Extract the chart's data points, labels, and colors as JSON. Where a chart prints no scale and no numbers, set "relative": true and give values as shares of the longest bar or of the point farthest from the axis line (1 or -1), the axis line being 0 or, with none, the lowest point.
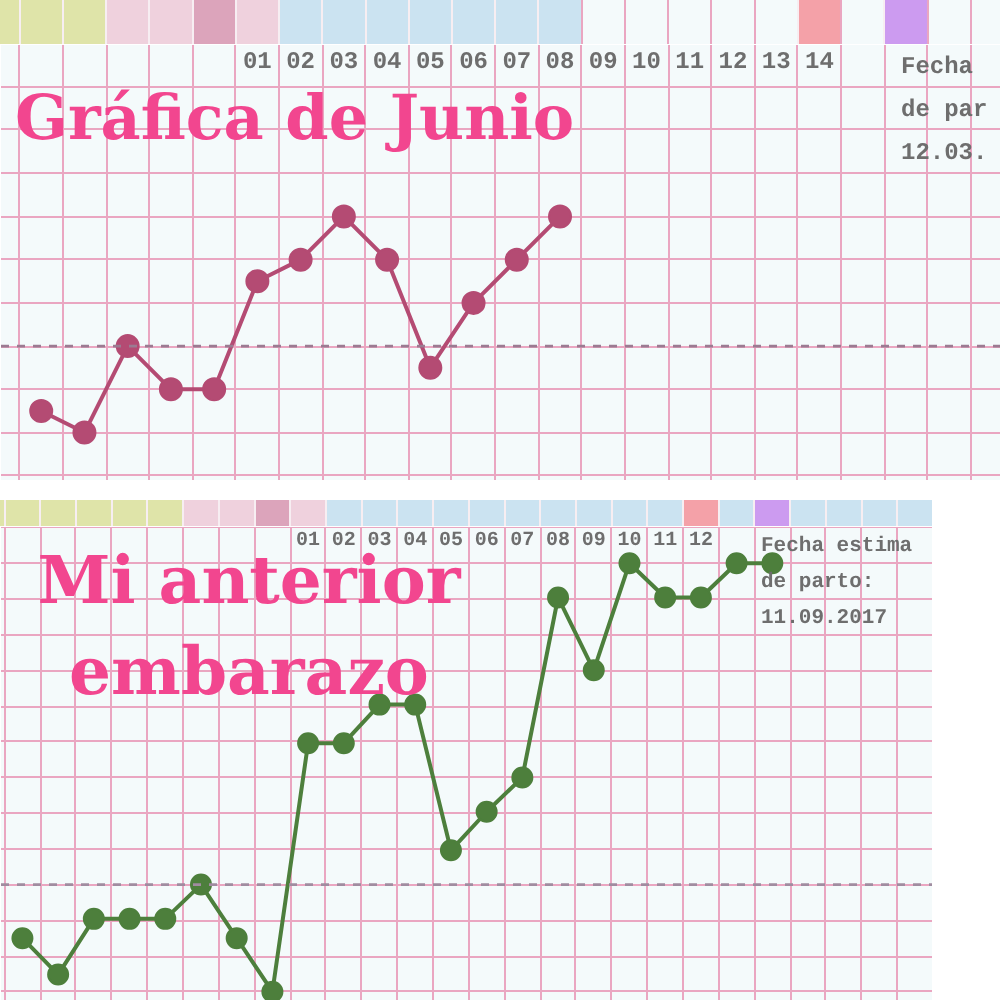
{
  "chart_data": [
    {
      "type": "line",
      "title": "Gráfica de Junio",
      "relative": true,
      "grid": true,
      "marker": "circle",
      "xlim": [
        -4.93,
        18.2
      ],
      "xticks": [
        {
          "value": -4.5,
          "label": null
        },
        {
          "value": -3.5,
          "label": null
        },
        {
          "value": -2.5,
          "label": null
        },
        {
          "value": -1.5,
          "label": null
        },
        {
          "value": -0.5,
          "label": null
        },
        {
          "value": 0.5,
          "label": null
        },
        {
          "value": 1,
          "label": "01"
        },
        {
          "value": 1.5,
          "label": null
        },
        {
          "value": 2,
          "label": "02"
        },
        {
          "value": 2.5,
          "label": null
        },
        {
          "value": 3,
          "label": "03"
        },
        {
          "value": 3.5,
          "label": null
        },
        {
          "value": 4,
          "label": "04"
        },
        {
          "value": 4.5,
          "label": null
        },
        {
          "value": 5,
          "label": "05"
        },
        {
          "value": 5.5,
          "label": null
        },
        {
          "value": 6,
          "label": "06"
        },
        {
          "value": 6.5,
          "label": null
        },
        {
          "value": 7,
          "label": "07"
        },
        {
          "value": 7.5,
          "label": null
        },
        {
          "value": 8,
          "label": "08"
        },
        {
          "value": 8.5,
          "label": null
        },
        {
          "value": 9,
          "label": "09"
        },
        {
          "value": 9.5,
          "label": null
        },
        {
          "value": 10,
          "label": "10"
        },
        {
          "value": 10.5,
          "label": null
        },
        {
          "value": 11,
          "label": "11"
        },
        {
          "value": 11.5,
          "label": null
        },
        {
          "value": 12,
          "label": "12"
        },
        {
          "value": 12.5,
          "label": null
        },
        {
          "value": 13,
          "label": "13"
        },
        {
          "value": 13.5,
          "label": null
        },
        {
          "value": 14,
          "label": "14"
        },
        {
          "value": 14.5,
          "label": null
        },
        {
          "value": 15.5,
          "label": null
        },
        {
          "value": 16.5,
          "label": null
        },
        {
          "value": 17.5,
          "label": null
        }
      ],
      "x": [
        -4,
        -3,
        -2,
        -1,
        0,
        1,
        2,
        3,
        4,
        5,
        6,
        7,
        8
      ],
      "series": [
        {
          "color": "#b44b73",
          "values": [
            0.1,
            0,
            0.4,
            0.2,
            0.2,
            0.7,
            0.8,
            1,
            0.8,
            0.3,
            0.6,
            0.8,
            1
          ]
        }
      ],
      "ref_lines": [
        {
          "axis": "y",
          "value": 0.4,
          "color": "#9b7b92",
          "line_style": "dashed"
        }
      ],
      "annotations": [
        "Fecha\nde par\n12.03."
      ]
    },
    {
      "type": "line",
      "title": "Mi anterior embarazo",
      "relative": true,
      "grid": true,
      "marker": "circle",
      "xlim": [
        -7.6,
        18.5
      ],
      "xticks": [
        {
          "value": -7.5,
          "label": null
        },
        {
          "value": -6.5,
          "label": null
        },
        {
          "value": -5.5,
          "label": null
        },
        {
          "value": -4.5,
          "label": null
        },
        {
          "value": -3.5,
          "label": null
        },
        {
          "value": -2.5,
          "label": null
        },
        {
          "value": -1.5,
          "label": null
        },
        {
          "value": -0.5,
          "label": null
        },
        {
          "value": 0.5,
          "label": null
        },
        {
          "value": 1,
          "label": "01"
        },
        {
          "value": 1.5,
          "label": null
        },
        {
          "value": 2,
          "label": "02"
        },
        {
          "value": 2.5,
          "label": null
        },
        {
          "value": 3,
          "label": "03"
        },
        {
          "value": 3.5,
          "label": null
        },
        {
          "value": 4,
          "label": "04"
        },
        {
          "value": 4.5,
          "label": null
        },
        {
          "value": 5,
          "label": "05"
        },
        {
          "value": 5.5,
          "label": null
        },
        {
          "value": 6,
          "label": "06"
        },
        {
          "value": 6.5,
          "label": null
        },
        {
          "value": 7,
          "label": "07"
        },
        {
          "value": 7.5,
          "label": null
        },
        {
          "value": 8,
          "label": "08"
        },
        {
          "value": 8.5,
          "label": null
        },
        {
          "value": 9,
          "label": "09"
        },
        {
          "value": 9.5,
          "label": null
        },
        {
          "value": 10,
          "label": "10"
        },
        {
          "value": 10.5,
          "label": null
        },
        {
          "value": 11,
          "label": "11"
        },
        {
          "value": 11.5,
          "label": null
        },
        {
          "value": 12,
          "label": "12"
        },
        {
          "value": 12.5,
          "label": null
        },
        {
          "value": 13.5,
          "label": null
        },
        {
          "value": 14.5,
          "label": null
        },
        {
          "value": 15.5,
          "label": null
        },
        {
          "value": 16.5,
          "label": null
        },
        {
          "value": 17.5,
          "label": null
        },
        {
          "value": 18.5,
          "label": null
        }
      ],
      "x": [
        -7,
        -6,
        -5,
        -4,
        -3,
        -2,
        -1,
        0,
        1,
        2,
        3,
        4,
        5,
        6,
        7,
        8,
        9,
        10,
        11,
        12,
        13,
        14
      ],
      "series": [
        {
          "color": "#4d7f3c",
          "values": [
            0.125,
            0.04,
            0.17,
            0.17,
            0.17,
            0.25,
            0.125,
            0,
            0.58,
            0.58,
            0.67,
            0.67,
            0.33,
            0.42,
            0.5,
            0.92,
            0.75,
            1,
            0.92,
            0.92,
            1,
            1
          ]
        }
      ],
      "ref_lines": [
        {
          "axis": "y",
          "value": 0.25,
          "color": "#a08ca0",
          "line_style": "dashed"
        }
      ],
      "annotations": [
        "Fecha estima\nde parto:\n11.09.2017"
      ]
    }
  ]
}
